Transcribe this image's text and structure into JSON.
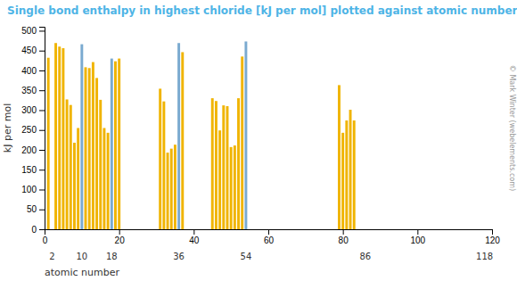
{
  "chart_data": {
    "type": "bar",
    "title": "Single bond enthalpy in highest chloride [kJ per mol] plotted against atomic number",
    "ylabel": "kJ per mol",
    "xlabel": "atomic number",
    "x": [
      1,
      3,
      4,
      5,
      6,
      7,
      8,
      9,
      10,
      11,
      12,
      13,
      14,
      15,
      16,
      17,
      18,
      19,
      20,
      31,
      32,
      33,
      34,
      35,
      36,
      37,
      45,
      46,
      47,
      48,
      49,
      50,
      51,
      52,
      53,
      54,
      79,
      80,
      81,
      82,
      83
    ],
    "values": [
      432,
      469,
      460,
      456,
      327,
      313,
      218,
      255,
      466,
      408,
      406,
      421,
      381,
      326,
      255,
      243,
      430,
      423,
      430,
      354,
      322,
      193,
      203,
      213,
      469,
      446,
      330,
      323,
      249,
      312,
      310,
      207,
      211,
      330,
      435,
      473,
      363,
      243,
      274,
      301,
      274
    ],
    "colors": [
      "#f0b400",
      "#f0b400",
      "#f0b400",
      "#f0b400",
      "#f0b400",
      "#f0b400",
      "#f0b400",
      "#f0b400",
      "#7aaad0",
      "#f0b400",
      "#f0b400",
      "#f0b400",
      "#f0b400",
      "#f0b400",
      "#f0b400",
      "#f0b400",
      "#7aaad0",
      "#f0b400",
      "#f0b400",
      "#f0b400",
      "#f0b400",
      "#f0b400",
      "#f0b400",
      "#f0b400",
      "#7aaad0",
      "#f0b400",
      "#f0b400",
      "#f0b400",
      "#f0b400",
      "#f0b400",
      "#f0b400",
      "#f0b400",
      "#f0b400",
      "#f0b400",
      "#f0b400",
      "#7aaad0",
      "#f0b400",
      "#f0b400",
      "#f0b400",
      "#f0b400",
      "#f0b400"
    ],
    "xlim": [
      0,
      120
    ],
    "ylim": [
      0,
      510
    ],
    "xticks": [
      0,
      20,
      40,
      60,
      80,
      100,
      120
    ],
    "yticks": [
      0,
      50,
      100,
      150,
      200,
      250,
      300,
      350,
      400,
      450,
      500
    ],
    "annotations": [
      {
        "x": 2,
        "text": "2"
      },
      {
        "x": 10,
        "text": "10"
      },
      {
        "x": 18,
        "text": "18"
      },
      {
        "x": 36,
        "text": "36"
      },
      {
        "x": 54,
        "text": "54"
      },
      {
        "x": 86,
        "text": "86"
      },
      {
        "x": 118,
        "text": "118"
      },
      {
        "text": "© Mark Winter (webelements.com)"
      }
    ]
  }
}
